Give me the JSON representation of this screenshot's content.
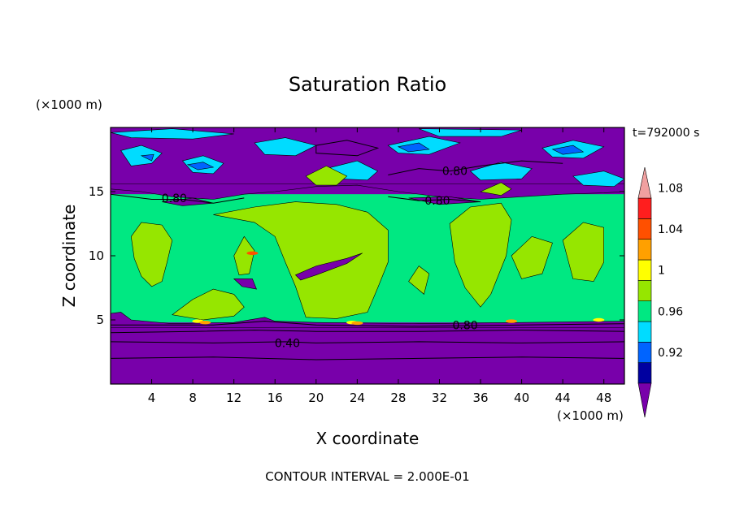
{
  "chart_data": {
    "type": "heatmap",
    "title": "Saturation Ratio",
    "xlabel": "X coordinate",
    "ylabel": "Z coordinate",
    "x_unit": "(×1000 m)",
    "y_unit": "(×1000 m)",
    "time_label": "t=792000 s",
    "footer": "CONTOUR INTERVAL = 2.000E-01",
    "xlim": [
      0,
      50
    ],
    "ylim": [
      0,
      20
    ],
    "x_ticks": [
      "4",
      "8",
      "12",
      "16",
      "20",
      "24",
      "28",
      "32",
      "36",
      "40",
      "44",
      "48"
    ],
    "y_ticks": [
      "5",
      "10",
      "15"
    ],
    "contour_labels": [
      {
        "text": "0.80",
        "x": 33.5,
        "y": 16.6
      },
      {
        "text": "0.80",
        "x": 6.2,
        "y": 14.5
      },
      {
        "text": "0.80",
        "x": 31.8,
        "y": 14.3
      },
      {
        "text": "0.80",
        "x": 34.5,
        "y": 4.6
      },
      {
        "text": "0.40",
        "x": 17.2,
        "y": 3.2
      }
    ],
    "colorbar": {
      "ticks": [
        "1.08",
        "1.04",
        "1",
        "0.96",
        "0.92"
      ],
      "colors": [
        "#7800aa",
        "#0000a0",
        "#0064ff",
        "#00dcff",
        "#00e882",
        "#96e600",
        "#ffff00",
        "#ffa000",
        "#ff5000",
        "#ff1e1e",
        "#f0a0a0"
      ],
      "under_color": "#7800aa",
      "over_color": "#f0a0a0"
    }
  }
}
